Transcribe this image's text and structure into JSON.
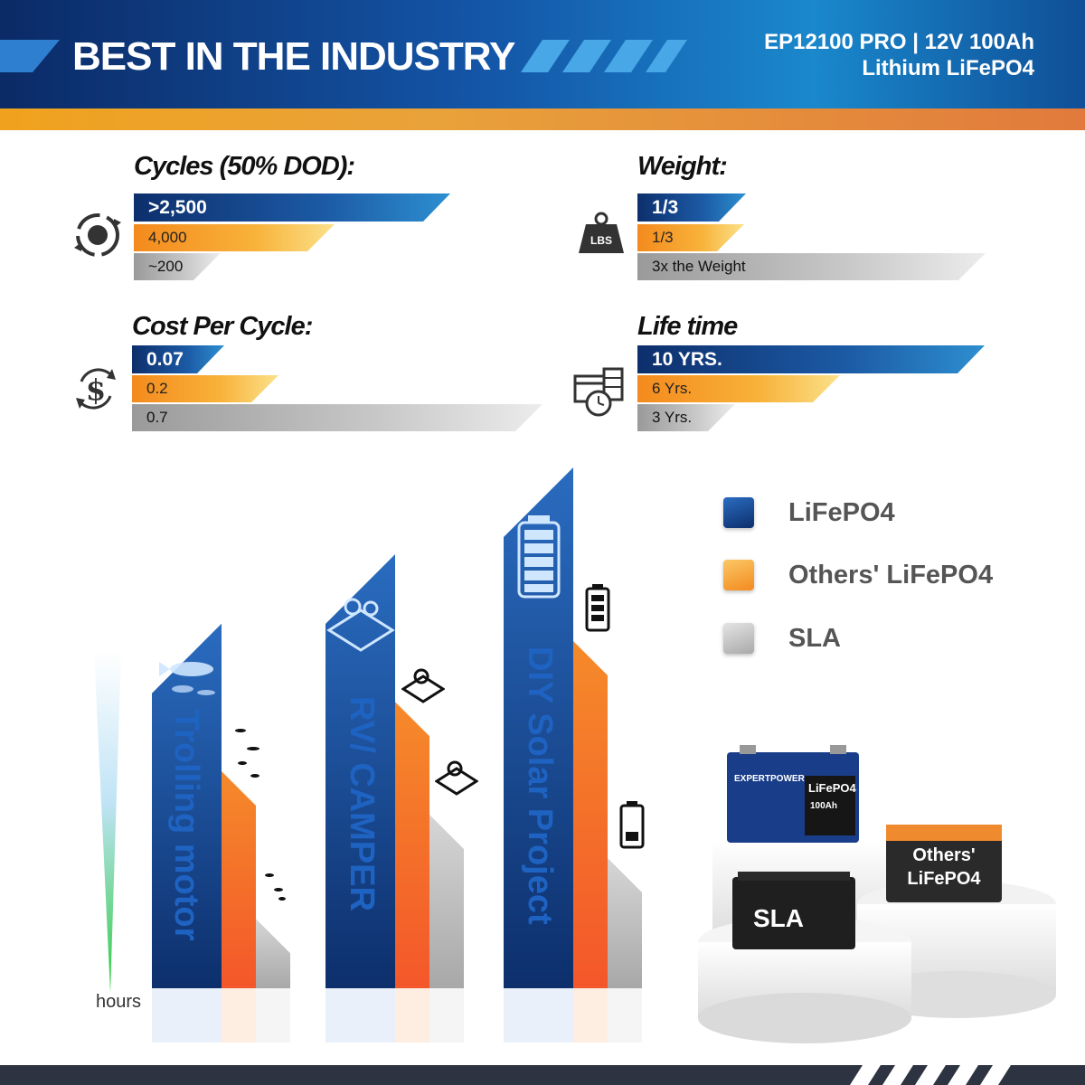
{
  "header": {
    "title": "BEST IN THE INDUSTRY",
    "product_line1": "EP12100 PRO | 12V 100Ah",
    "product_line2": "Lithium LiFePO4"
  },
  "metrics": {
    "cycles": {
      "title": "Cycles (50% DOD):",
      "lifepo4": ">2,500",
      "others": "4,000",
      "sla": "~200"
    },
    "weight": {
      "title": "Weight:",
      "lifepo4": "1/3",
      "others": "1/3",
      "sla": "3x the Weight",
      "icon_text": "LBS"
    },
    "cost": {
      "title": "Cost Per Cycle:",
      "lifepo4": "0.07",
      "others": "0.2",
      "sla": "0.7"
    },
    "lifetime": {
      "title": "Life time",
      "lifepo4": "10 YRS.",
      "others": "6 Yrs.",
      "sla": "3 Yrs."
    }
  },
  "legend": [
    "LiFePO4",
    "Others' LiFePO4",
    "SLA"
  ],
  "colors": {
    "lifepo4": "#1a4f9c",
    "others": "#f58a2a",
    "sla": "#c4c4c4",
    "header": "#0f4f97",
    "stripe": "#e9a23a"
  },
  "chart_data": {
    "type": "bar",
    "categories": [
      "Trolling motor",
      "RV/ CAMPER",
      "DIY Solar Project"
    ],
    "ylabel": "hours",
    "series": [
      {
        "name": "LiFePO4",
        "values": [
          42,
          50,
          60
        ]
      },
      {
        "name": "Others' LiFePO4",
        "values": [
          25,
          33,
          40
        ]
      },
      {
        "name": "SLA",
        "values": [
          8,
          20,
          15
        ]
      }
    ]
  },
  "products": {
    "expert_brand": "EXPERTPOWER",
    "lifepo4_label": "LiFePO4",
    "capacity": "100Ah",
    "sla_label": "SLA",
    "others_label_1": "Others'",
    "others_label_2": "LiFePO4"
  }
}
